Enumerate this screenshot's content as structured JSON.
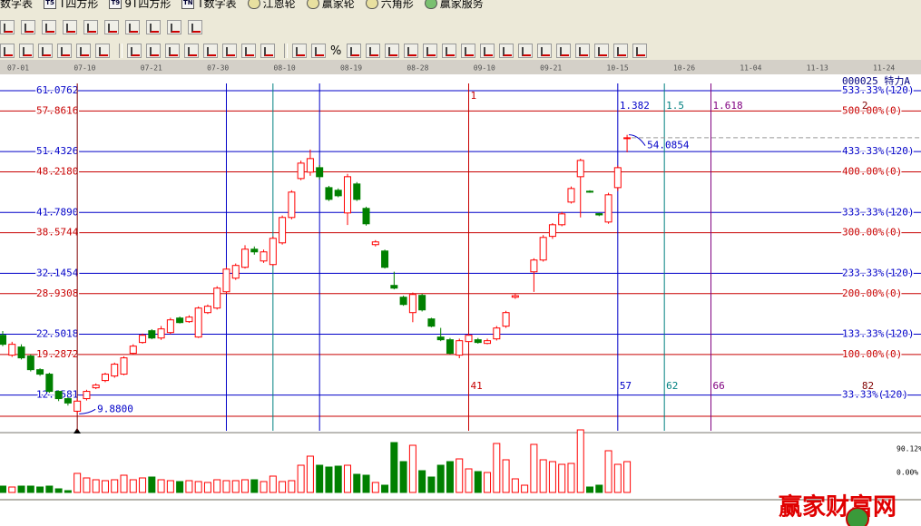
{
  "toolbar": {
    "items": [
      {
        "label": "数字表"
      },
      {
        "icon": "T5",
        "label": "T四方形"
      },
      {
        "icon": "T9",
        "label": "9T四方形"
      },
      {
        "icon": "TN",
        "label": "T数字表"
      },
      {
        "label": "江恩轮"
      },
      {
        "label": "赢家轮"
      },
      {
        "label": "六角形"
      },
      {
        "label": "赢家服务"
      }
    ],
    "percent_tool": "%"
  },
  "watermark": "赢家财富网",
  "chart_data": {
    "type": "candlestick",
    "title": "000025 特力A",
    "dates": [
      "07-01",
      "07-10",
      "07-21",
      "07-30",
      "08-10",
      "08-19",
      "08-28",
      "09-10",
      "09-21",
      "10-15",
      "10-26",
      "11-04",
      "11-13",
      "11-24"
    ],
    "open": [
      22.33,
      19.18,
      20.47,
      19.04,
      16.88,
      16.17,
      13.44,
      12.29,
      10.3,
      12.29,
      14.01,
      15.16,
      15.88,
      16.17,
      19.47,
      21.19,
      23.05,
      21.9,
      22.76,
      25.06,
      24.49,
      22.05,
      25.92,
      26.64,
      29.22,
      31.38,
      33.1,
      35.97,
      34.1,
      33.53,
      36.97,
      40.99,
      47.16,
      48.17,
      48.88,
      45.72,
      45.3,
      41.71,
      46.3,
      42.43,
      36.69,
      35.68,
      30.23,
      28.36,
      25.92,
      28.65,
      24.92,
      22.05,
      21.62,
      19.18,
      21.33,
      21.62,
      21.04,
      21.76,
      23.77,
      28.36,
      null,
      32.38,
      34.25,
      38.0,
      39.84,
      43.43,
      47.45,
      45.15,
      41.6,
      40.27,
      45.72,
      53.5
    ],
    "high": [
      23.0,
      21.3,
      20.9,
      19.3,
      17.1,
      16.4,
      13.6,
      12.5,
      12.3,
      13.7,
      14.7,
      16.4,
      18.0,
      19.0,
      20.9,
      22.6,
      23.3,
      23.8,
      25.1,
      25.3,
      25.5,
      26.9,
      27.2,
      30.1,
      33.1,
      33.7,
      36.6,
      36.4,
      35.9,
      38.0,
      41.3,
      45.3,
      50.0,
      51.75,
      49.3,
      46.0,
      45.6,
      47.9,
      46.6,
      42.7,
      37.4,
      35.9,
      32.4,
      28.6,
      29.1,
      28.9,
      25.1,
      23.5,
      21.9,
      21.8,
      22.6,
      21.9,
      21.8,
      23.8,
      26.2,
      28.9,
      null,
      34.53,
      38.2,
      40.1,
      41.9,
      45.9,
      50.3,
      45.3,
      41.7,
      44.9,
      49.2,
      54.0854
    ],
    "low": [
      20.6,
      18.9,
      18.5,
      16.6,
      15.9,
      13.2,
      11.9,
      11.2,
      9.88,
      12.0,
      13.8,
      14.9,
      15.6,
      16.0,
      19.3,
      21.0,
      21.7,
      21.6,
      22.5,
      24.2,
      24.3,
      21.9,
      25.7,
      26.4,
      28.9,
      31.1,
      32.9,
      35.1,
      33.8,
      33.3,
      36.7,
      40.7,
      46.9,
      47.6,
      47.0,
      43.6,
      44.2,
      39.8,
      43.6,
      39.7,
      36.4,
      32.9,
      29.6,
      27.0,
      24.4,
      26.1,
      23.6,
      21.4,
      19.3,
      18.7,
      21.1,
      21.0,
      20.9,
      21.5,
      23.5,
      28.1,
      null,
      29.2,
      34.0,
      37.6,
      39.6,
      43.2,
      41.0,
      44.9,
      41.2,
      40.0,
      45.2,
      51.32
    ],
    "close": [
      20.9,
      20.9,
      18.75,
      16.88,
      16.17,
      13.44,
      12.29,
      11.6,
      11.9,
      13.44,
      14.44,
      16.17,
      17.75,
      18.75,
      20.61,
      22.33,
      21.9,
      23.34,
      24.77,
      24.34,
      25.21,
      26.64,
      26.93,
      29.8,
      32.81,
      33.39,
      35.97,
      35.54,
      35.54,
      37.69,
      40.99,
      45.01,
      49.6,
      50.32,
      47.45,
      43.86,
      44.43,
      47.45,
      43.86,
      39.99,
      37.12,
      33.1,
      29.8,
      27.21,
      28.79,
      26.35,
      23.77,
      21.62,
      19.47,
      21.47,
      22.33,
      21.19,
      21.47,
      23.48,
      25.92,
      28.6,
      null,
      34.25,
      37.83,
      39.84,
      41.56,
      45.58,
      50.03,
      45.0,
      41.4,
      44.58,
      48.88,
      53.62
    ],
    "up_color": "#ff0000",
    "down_color": "#008000",
    "ylim": [
      9.5,
      61.0762
    ],
    "yticks": [
      61.0762,
      57.8616,
      51.4326,
      {
        "value": 48.218,
        "label": "48.2180"
      },
      {
        "value": 41.789,
        "label": "41.7890"
      },
      38.5744,
      32.1454,
      28.9308,
      22.5018,
      19.2872,
      12.8581
    ],
    "right_labels": [
      "533.33%(120)",
      "500.00%(0)",
      "433.33%(120)",
      "400.00%(0)",
      "333.33%(120)",
      "300.00%(0)",
      "233.33%(120)",
      "200.00%(0)",
      "133.33%(120)",
      "100.00%(0)",
      "33.33%(120)"
    ],
    "level_colors": [
      "#0000c8",
      "#c80000",
      "#0000c8",
      "#c80000",
      "#0000c8",
      "#c80000",
      "#0000c8",
      "#c80000",
      "#0000c8",
      "#c80000",
      "#0000c8"
    ],
    "time_lines": [
      {
        "index": 8,
        "color": "#800000"
      },
      {
        "index": 24,
        "color": "#0000c8"
      },
      {
        "index": 29,
        "color": "#008080"
      },
      {
        "index": 34,
        "color": "#0000c8"
      },
      {
        "index": 50,
        "color": "#c80000",
        "top": 1,
        "bottom": 41
      },
      {
        "index": 66,
        "color": "#0000c8",
        "top": 1.382,
        "bottom": 57
      },
      {
        "index": 71,
        "color": "#008080",
        "top": 1.5,
        "bottom": 62
      },
      {
        "index": 76,
        "color": "#800080",
        "top": 1.618,
        "bottom": 66
      },
      {
        "index": 92,
        "color": "#800000",
        "top": 2,
        "bottom": 82,
        "line": false
      }
    ],
    "annotations": [
      {
        "index": 8,
        "value": 9.88,
        "label": "9.8800"
      },
      {
        "index": 67,
        "value": 54.0854,
        "label": "54.0854"
      }
    ],
    "volume": {
      "values": [
        7,
        6,
        7,
        7,
        6,
        7,
        4,
        2,
        21,
        16,
        14,
        13,
        14,
        19,
        14,
        16,
        17,
        14,
        13,
        12,
        13,
        12,
        11,
        14,
        13,
        13,
        14,
        14,
        12,
        18,
        12,
        13,
        30,
        40,
        30,
        28,
        29,
        30,
        20,
        19,
        11,
        8,
        55,
        34,
        52,
        24,
        17,
        30,
        34,
        37,
        26,
        23,
        22,
        54,
        36,
        15,
        8,
        53,
        36,
        34,
        31,
        32,
        69,
        6,
        8,
        46,
        31,
        34
      ],
      "ylim": [
        0,
        70
      ],
      "axis_labels": [
        "90.12%",
        "0.00%"
      ]
    }
  }
}
